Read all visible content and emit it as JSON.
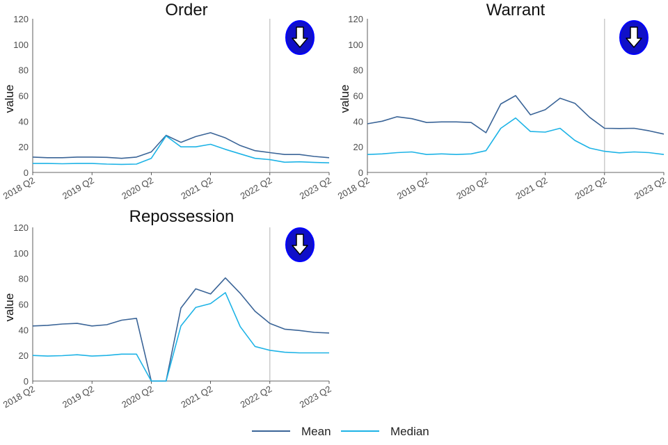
{
  "colors": {
    "mean": "#3A6497",
    "median": "#1DB3E6",
    "vline": "#BEBEBE",
    "axis": "#333333",
    "badge_fill": "#1010C8",
    "badge_ring": "#0000FF",
    "arrow": "#FFFFFF"
  },
  "icons": {
    "trend": "down-arrow-icon"
  },
  "legend": {
    "mean_label": "Mean",
    "median_label": "Median"
  },
  "chart_data": [
    {
      "type": "line",
      "title": "Order",
      "ylabel": "value",
      "xlabel": "",
      "ylim": [
        0,
        120
      ],
      "y_ticks": [
        0,
        20,
        40,
        60,
        80,
        100,
        120
      ],
      "x": [
        "2018 Q2",
        "2018 Q3",
        "2018 Q4",
        "2019 Q1",
        "2019 Q2",
        "2019 Q3",
        "2019 Q4",
        "2020 Q1",
        "2020 Q2",
        "2020 Q3",
        "2020 Q4",
        "2021 Q1",
        "2021 Q2",
        "2021 Q3",
        "2021 Q4",
        "2022 Q1",
        "2022 Q2",
        "2022 Q3",
        "2022 Q4",
        "2023 Q1",
        "2023 Q2"
      ],
      "x_ticks": [
        "2018 Q2",
        "2019 Q2",
        "2020 Q2",
        "2021 Q2",
        "2022 Q2",
        "2023 Q2"
      ],
      "vline": "2022 Q2",
      "trend_icon": "down-arrow-icon",
      "series": [
        {
          "name": "Mean",
          "values": [
            12,
            11.5,
            11.5,
            12,
            12,
            11.8,
            11,
            12,
            16,
            29,
            23.5,
            28,
            31,
            27,
            21,
            17,
            15.5,
            14,
            14,
            12.5,
            11.5
          ]
        },
        {
          "name": "Median",
          "values": [
            7,
            7,
            6.8,
            7,
            7,
            6.5,
            6.3,
            6.5,
            11,
            28.5,
            20,
            20,
            22,
            18,
            14.5,
            11,
            10,
            8,
            8.3,
            7.8,
            7.5
          ]
        }
      ]
    },
    {
      "type": "line",
      "title": "Warrant",
      "ylabel": "value",
      "xlabel": "",
      "ylim": [
        0,
        120
      ],
      "y_ticks": [
        0,
        20,
        40,
        60,
        80,
        100,
        120
      ],
      "x": [
        "2018 Q2",
        "2018 Q3",
        "2018 Q4",
        "2019 Q1",
        "2019 Q2",
        "2019 Q3",
        "2019 Q4",
        "2020 Q1",
        "2020 Q2",
        "2020 Q3",
        "2020 Q4",
        "2021 Q1",
        "2021 Q2",
        "2021 Q3",
        "2021 Q4",
        "2022 Q1",
        "2022 Q2",
        "2022 Q3",
        "2022 Q4",
        "2023 Q1",
        "2023 Q2"
      ],
      "x_ticks": [
        "2018 Q2",
        "2019 Q2",
        "2020 Q2",
        "2021 Q2",
        "2022 Q2",
        "2023 Q2"
      ],
      "vline": "2022 Q2",
      "trend_icon": "down-arrow-icon",
      "series": [
        {
          "name": "Mean",
          "values": [
            38,
            40,
            43.5,
            42,
            39,
            39.5,
            39.5,
            39,
            31,
            53.5,
            60,
            45,
            49,
            58,
            54,
            43,
            34.5,
            34.3,
            34.5,
            32.5,
            30
          ]
        },
        {
          "name": "Median",
          "values": [
            14,
            14.5,
            15.5,
            16,
            14,
            14.5,
            14,
            14.5,
            17,
            34.5,
            42.5,
            32,
            31.5,
            34.5,
            25,
            19,
            16.5,
            15.3,
            16,
            15.5,
            14
          ]
        }
      ]
    },
    {
      "type": "line",
      "title": "Repossession",
      "ylabel": "value",
      "xlabel": "",
      "ylim": [
        0,
        120
      ],
      "y_ticks": [
        0,
        20,
        40,
        60,
        80,
        100,
        120
      ],
      "x": [
        "2018 Q2",
        "2018 Q3",
        "2018 Q4",
        "2019 Q1",
        "2019 Q2",
        "2019 Q3",
        "2019 Q4",
        "2020 Q1",
        "2020 Q2",
        "2020 Q3",
        "2020 Q4",
        "2021 Q1",
        "2021 Q2",
        "2021 Q3",
        "2021 Q4",
        "2022 Q1",
        "2022 Q2",
        "2022 Q3",
        "2022 Q4",
        "2023 Q1",
        "2023 Q2"
      ],
      "x_ticks": [
        "2018 Q2",
        "2019 Q2",
        "2020 Q2",
        "2021 Q2",
        "2022 Q2",
        "2023 Q2"
      ],
      "vline": "2022 Q2",
      "trend_icon": "down-arrow-icon",
      "series": [
        {
          "name": "Mean",
          "values": [
            43,
            43.5,
            44.5,
            45,
            43,
            44,
            47.5,
            49,
            0,
            0,
            57,
            72,
            68,
            80.5,
            68.5,
            54.5,
            45,
            40.5,
            39.5,
            38,
            37.5
          ]
        },
        {
          "name": "Median",
          "values": [
            20,
            19.5,
            19.8,
            20.5,
            19.5,
            20,
            21,
            21,
            0,
            0,
            43,
            57.5,
            60.5,
            69,
            42.5,
            27,
            24,
            22.5,
            22,
            22,
            22
          ]
        }
      ]
    }
  ]
}
